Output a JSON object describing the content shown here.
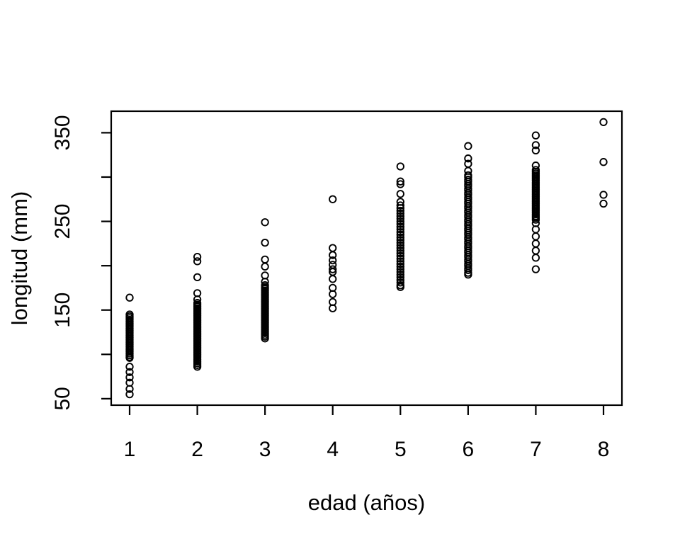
{
  "figure": {
    "background_color": "#ffffff",
    "foreground_color": "#000000"
  },
  "chart_data": {
    "type": "scatter",
    "title": "",
    "xlabel": "edad (años)",
    "ylabel": "longitud (mm)",
    "marker": "open-circle",
    "marker_color": "#000000",
    "grid": false,
    "legend": null,
    "xlim": [
      0.728,
      8.272
    ],
    "ylim": [
      42.7,
      374.3
    ],
    "x_tick_labels": [
      "1",
      "2",
      "3",
      "4",
      "5",
      "6",
      "7",
      "8"
    ],
    "x_tick_values": [
      1,
      2,
      3,
      4,
      5,
      6,
      7,
      8
    ],
    "y_tick_values": [
      50,
      100,
      150,
      200,
      250,
      300,
      350
    ],
    "y_tick_labeled_values": [
      50,
      150,
      250,
      350
    ],
    "y_tick_labels": [
      "50",
      "150",
      "250",
      "350"
    ],
    "series": [
      {
        "name": "edad 1",
        "x": 1,
        "lengths_mm": [
          164,
          145,
          143,
          141,
          139,
          137,
          135,
          133,
          131,
          129,
          127,
          125,
          123,
          121,
          119,
          117,
          115,
          113,
          111,
          109,
          107,
          105,
          103,
          101,
          99,
          97,
          96,
          86,
          80,
          74,
          68,
          61,
          55
        ]
      },
      {
        "name": "edad 2",
        "x": 2,
        "lengths_mm": [
          210,
          205,
          187,
          169,
          162,
          158,
          156,
          154,
          152,
          150,
          148,
          146,
          144,
          142,
          140,
          138,
          136,
          134,
          132,
          130,
          128,
          126,
          124,
          122,
          120,
          118,
          116,
          114,
          112,
          110,
          108,
          106,
          104,
          102,
          100,
          98,
          96,
          94,
          92,
          90,
          88,
          86
        ]
      },
      {
        "name": "edad 3",
        "x": 3,
        "lengths_mm": [
          249,
          226,
          207,
          199,
          189,
          182,
          178,
          176,
          174,
          172,
          170,
          168,
          166,
          164,
          162,
          160,
          158,
          156,
          154,
          152,
          150,
          148,
          146,
          144,
          142,
          140,
          138,
          136,
          134,
          132,
          130,
          128,
          126,
          124,
          122,
          120,
          118
        ]
      },
      {
        "name": "edad 4",
        "x": 4,
        "lengths_mm": [
          275,
          220,
          212,
          206,
          201,
          196,
          193,
          185,
          175,
          168,
          159,
          152
        ]
      },
      {
        "name": "edad 5",
        "x": 5,
        "lengths_mm": [
          312,
          295,
          292,
          281,
          272,
          268,
          265,
          262,
          259,
          256,
          253,
          250,
          247,
          244,
          241,
          238,
          235,
          232,
          229,
          226,
          223,
          220,
          217,
          214,
          211,
          208,
          205,
          202,
          199,
          196,
          193,
          190,
          187,
          184,
          181,
          178,
          176
        ]
      },
      {
        "name": "edad 6",
        "x": 6,
        "lengths_mm": [
          335,
          321,
          315,
          307,
          302,
          300,
          297,
          295,
          292,
          290,
          287,
          285,
          282,
          280,
          277,
          275,
          272,
          270,
          267,
          265,
          262,
          260,
          257,
          255,
          252,
          250,
          247,
          245,
          242,
          240,
          237,
          235,
          232,
          230,
          227,
          225,
          222,
          220,
          217,
          215,
          212,
          210,
          207,
          205,
          202,
          200,
          197,
          195,
          192,
          190
        ]
      },
      {
        "name": "edad 7",
        "x": 7,
        "lengths_mm": [
          347,
          336,
          330,
          313,
          308,
          306,
          304,
          302,
          300,
          298,
          296,
          294,
          292,
          290,
          288,
          286,
          284,
          282,
          280,
          278,
          276,
          274,
          272,
          270,
          268,
          266,
          264,
          262,
          260,
          258,
          256,
          254,
          252,
          248,
          241,
          233,
          225,
          217,
          209,
          196
        ]
      },
      {
        "name": "edad 8",
        "x": 8,
        "lengths_mm": [
          362,
          317,
          280,
          270
        ]
      }
    ]
  }
}
